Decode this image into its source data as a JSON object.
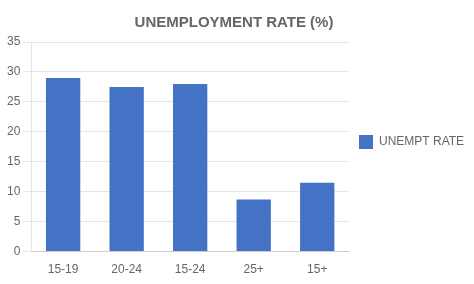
{
  "chart_data": {
    "type": "bar",
    "title": "UNEMPLOYMENT RATE (%)",
    "categories": [
      "15-19",
      "20-24",
      "15-24",
      "25+",
      "15+"
    ],
    "series": [
      {
        "name": "UNEMPT RATE (%)",
        "color": "#4472C4",
        "values": [
          29.0,
          27.5,
          28.0,
          8.7,
          11.5
        ]
      }
    ],
    "ylim": [
      0,
      35
    ],
    "yticks": [
      0,
      5,
      10,
      15,
      20,
      25,
      30,
      35
    ],
    "grid": true,
    "legend": "right"
  }
}
